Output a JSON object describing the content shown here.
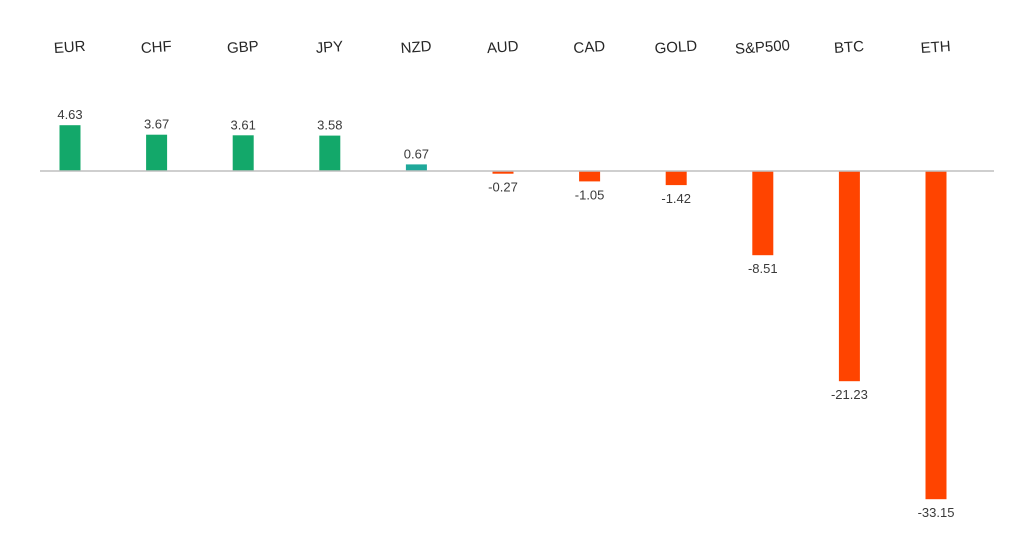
{
  "chart_data": {
    "type": "bar",
    "categories": [
      "EUR",
      "CHF",
      "GBP",
      "JPY",
      "NZD",
      "AUD",
      "CAD",
      "GOLD",
      "S&P500",
      "BTC",
      "ETH"
    ],
    "values": [
      4.63,
      3.67,
      3.61,
      3.58,
      0.67,
      -0.27,
      -1.05,
      -1.42,
      -8.51,
      -21.23,
      -33.15
    ],
    "value_labels": [
      "4.63",
      "3.67",
      "3.61",
      "3.58",
      "0.67",
      "-0.27",
      "-1.05",
      "-1.42",
      "-8.51",
      "-21.23",
      "-33.15"
    ],
    "title": "",
    "xlabel": "",
    "ylabel": "",
    "ylim": [
      -35,
      7
    ],
    "grid": false,
    "legend": "none",
    "category_axis_position": "top",
    "colors": {
      "positive": "#13a86a",
      "small_positive": "#1fa89a",
      "negative": "#ff4400",
      "zero_line": "#bfbfbf",
      "label_text": "#262626"
    }
  }
}
